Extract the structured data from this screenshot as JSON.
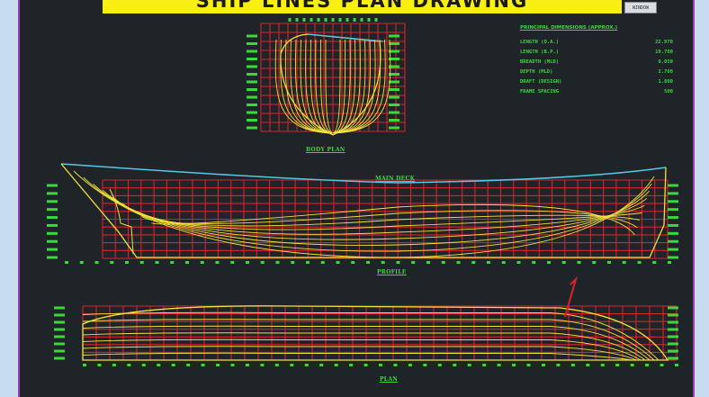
{
  "banner": {
    "text": "SHIP LINES PLAN DRAWING"
  },
  "corner_button": {
    "label": "WINDOW"
  },
  "labels": {
    "body_plan": "BODY PLAN",
    "main_deck": "MAIN DECK",
    "profile": "PROFILE",
    "plan": "PLAN"
  },
  "dimensions": {
    "title": "PRINCIPAL DIMENSIONS (APPROX.)",
    "rows": [
      {
        "label": "LENGTH (O.A.)",
        "value": "22.970"
      },
      {
        "label": "LENGTH (B.P.)",
        "value": "19.700"
      },
      {
        "label": "BREADTH (MLD)",
        "value": "6.050"
      },
      {
        "label": "DEPTH (MLD)",
        "value": "2.700"
      },
      {
        "label": "DRAFT (DESIGN)",
        "value": "1.800"
      },
      {
        "label": "FRAME SPACING",
        "value": "500"
      }
    ]
  },
  "colors": {
    "grid": "#d8232a",
    "lines": "#f2e23a",
    "deck": "#58c6e6",
    "text": "#39d93a",
    "background": "#1f2429",
    "banner": "#f9ef14"
  }
}
